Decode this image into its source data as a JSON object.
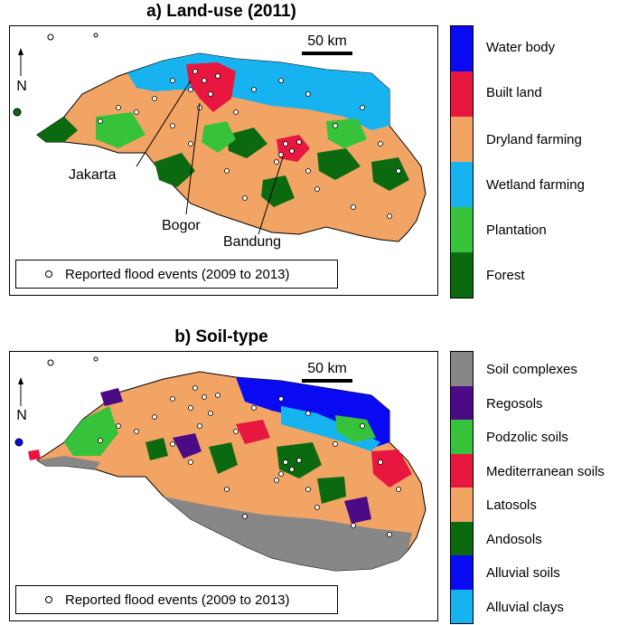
{
  "panel_a": {
    "title": "a) Land-use (2011)",
    "scale_label": "50 km",
    "north_label": "N",
    "cities": [
      "Jakarta",
      "Bogor",
      "Bandung"
    ],
    "flood_legend": "Reported flood events (2009 to 2013)",
    "legend": [
      {
        "label": "Water body",
        "color": "#0a0af2"
      },
      {
        "label": "Built land",
        "color": "#e8173f"
      },
      {
        "label": "Dryland farming",
        "color": "#f2a464"
      },
      {
        "label": "Wetland farming",
        "color": "#17b3f0"
      },
      {
        "label": "Plantation",
        "color": "#36c23a"
      },
      {
        "label": "Forest",
        "color": "#0b6a10"
      }
    ]
  },
  "panel_b": {
    "title": "b) Soil-type",
    "scale_label": "50 km",
    "north_label": "N",
    "flood_legend": "Reported flood events (2009 to 2013)",
    "legend": [
      {
        "label": "Soil complexes",
        "color": "#878787"
      },
      {
        "label": "Regosols",
        "color": "#4b0a86"
      },
      {
        "label": "Podzolic soils",
        "color": "#36c23a"
      },
      {
        "label": "Mediterranean soils",
        "color": "#e8173f"
      },
      {
        "label": "Latosols",
        "color": "#f2a464"
      },
      {
        "label": "Andosols",
        "color": "#0b6a10"
      },
      {
        "label": "Alluvial soils",
        "color": "#0a0af2"
      },
      {
        "label": "Alluvial clays",
        "color": "#17b3f0"
      }
    ]
  }
}
